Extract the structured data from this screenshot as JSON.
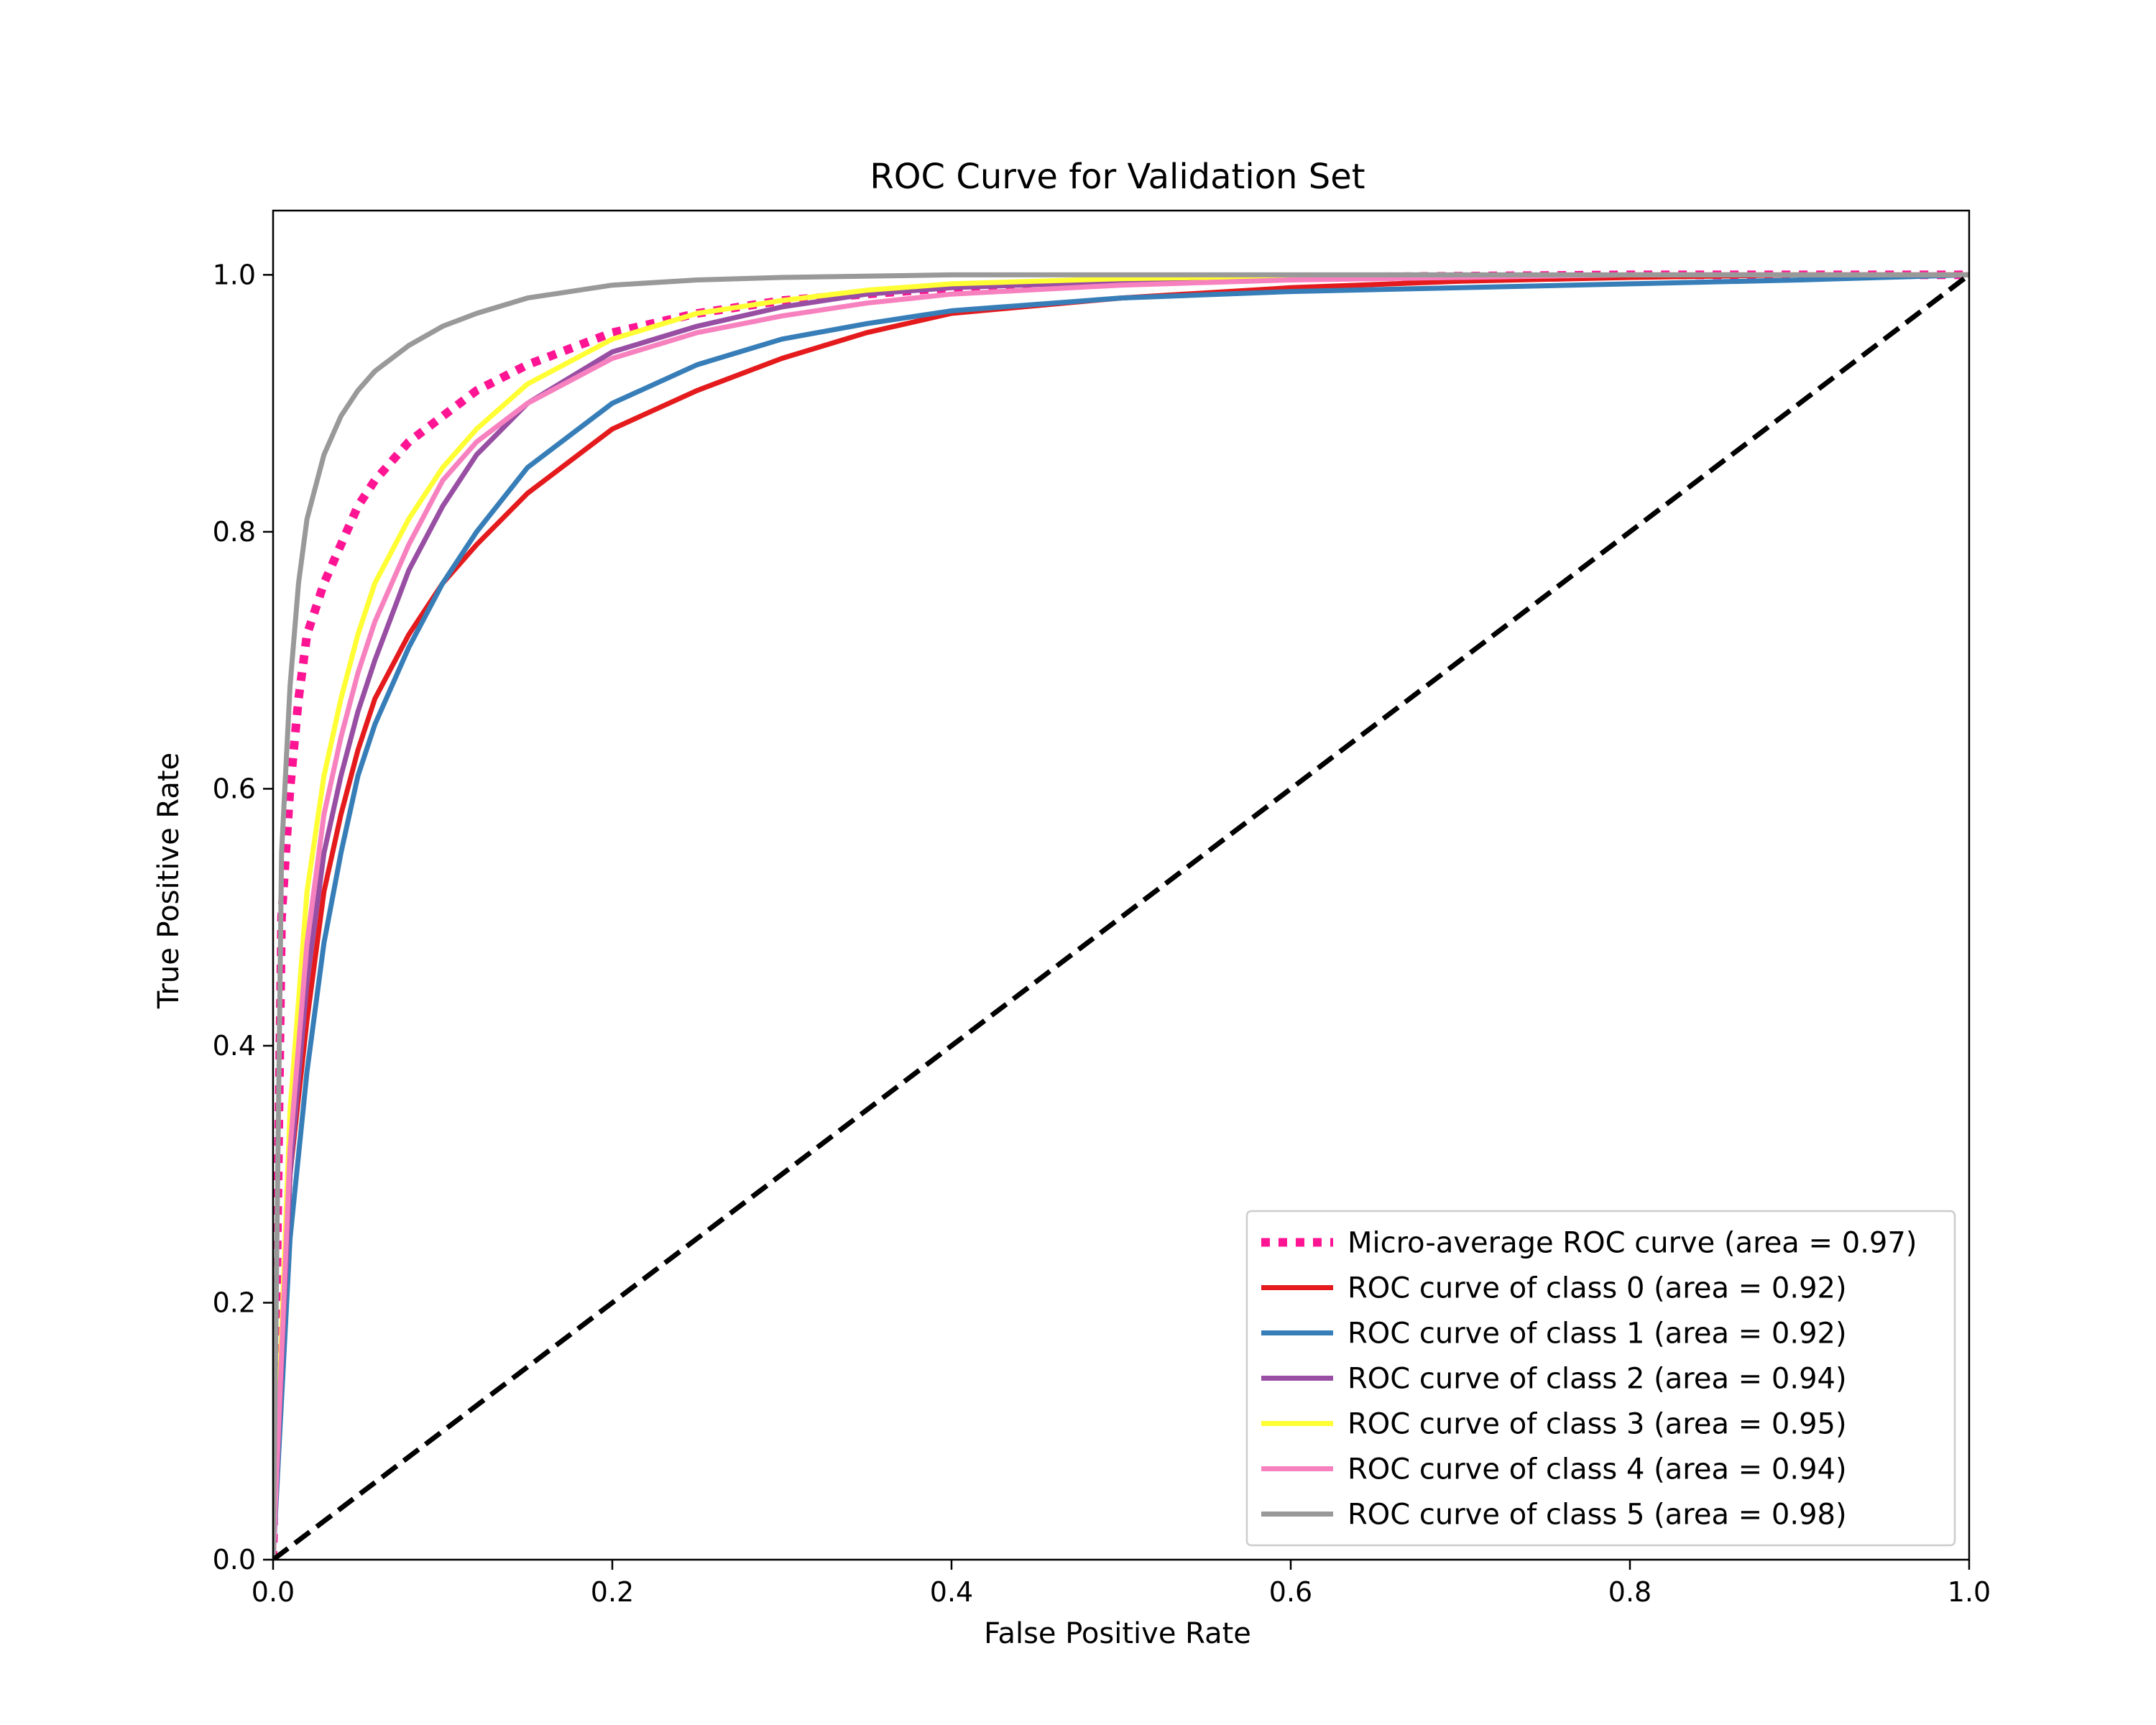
{
  "chart_data": {
    "type": "line",
    "title": "ROC Curve for Validation Set",
    "xlabel": "False Positive Rate",
    "ylabel": "True Positive Rate",
    "xlim": [
      0.0,
      1.0
    ],
    "ylim": [
      0.0,
      1.05
    ],
    "xticks": [
      0.0,
      0.2,
      0.4,
      0.6,
      0.8,
      1.0
    ],
    "xtick_labels": [
      "0.0",
      "0.2",
      "0.4",
      "0.6",
      "0.8",
      "1.0"
    ],
    "yticks": [
      0.0,
      0.2,
      0.4,
      0.6,
      0.8,
      1.0
    ],
    "ytick_labels": [
      "0.0",
      "0.2",
      "0.4",
      "0.6",
      "0.8",
      "1.0"
    ],
    "grid": false,
    "legend_position": "lower-right",
    "diagonal": {
      "name": "chance",
      "color": "#000000",
      "style": "dashed",
      "x": [
        0.0,
        1.0
      ],
      "y": [
        0.0,
        1.0
      ]
    },
    "series": [
      {
        "name": "Micro-average ROC curve (area = 0.97)",
        "color": "#ff1493",
        "style": "dotted",
        "x": [
          0.0,
          0.005,
          0.01,
          0.015,
          0.02,
          0.03,
          0.04,
          0.05,
          0.06,
          0.08,
          0.1,
          0.12,
          0.15,
          0.2,
          0.25,
          0.3,
          0.4,
          0.5,
          0.6,
          0.8,
          1.0
        ],
        "y": [
          0.0,
          0.5,
          0.6,
          0.67,
          0.72,
          0.76,
          0.79,
          0.82,
          0.84,
          0.87,
          0.89,
          0.91,
          0.93,
          0.955,
          0.97,
          0.98,
          0.99,
          0.995,
          0.998,
          1.0,
          1.0
        ]
      },
      {
        "name": "ROC curve of class 0 (area = 0.92)",
        "color": "#e41a1c",
        "style": "solid",
        "x": [
          0.0,
          0.01,
          0.02,
          0.03,
          0.04,
          0.05,
          0.06,
          0.08,
          0.1,
          0.12,
          0.15,
          0.2,
          0.25,
          0.3,
          0.35,
          0.4,
          0.5,
          0.6,
          0.7,
          0.8,
          0.9,
          1.0
        ],
        "y": [
          0.0,
          0.3,
          0.42,
          0.52,
          0.58,
          0.63,
          0.67,
          0.72,
          0.76,
          0.79,
          0.83,
          0.88,
          0.91,
          0.935,
          0.955,
          0.97,
          0.982,
          0.99,
          0.995,
          0.998,
          1.0,
          1.0
        ]
      },
      {
        "name": "ROC curve of class 1 (area = 0.92)",
        "color": "#377eb8",
        "style": "solid",
        "x": [
          0.0,
          0.01,
          0.02,
          0.03,
          0.04,
          0.05,
          0.06,
          0.08,
          0.1,
          0.12,
          0.15,
          0.2,
          0.25,
          0.3,
          0.35,
          0.4,
          0.5,
          0.6,
          0.7,
          0.8,
          0.9,
          1.0
        ],
        "y": [
          0.0,
          0.25,
          0.38,
          0.48,
          0.55,
          0.61,
          0.65,
          0.71,
          0.76,
          0.8,
          0.85,
          0.9,
          0.93,
          0.95,
          0.962,
          0.972,
          0.982,
          0.987,
          0.99,
          0.993,
          0.996,
          1.0
        ]
      },
      {
        "name": "ROC curve of class 2 (area = 0.94)",
        "color": "#984ea3",
        "style": "solid",
        "x": [
          0.0,
          0.01,
          0.02,
          0.03,
          0.04,
          0.05,
          0.06,
          0.08,
          0.1,
          0.12,
          0.15,
          0.2,
          0.25,
          0.3,
          0.35,
          0.4,
          0.5,
          0.6,
          0.8,
          1.0
        ],
        "y": [
          0.0,
          0.3,
          0.45,
          0.55,
          0.61,
          0.66,
          0.7,
          0.77,
          0.82,
          0.86,
          0.9,
          0.94,
          0.96,
          0.975,
          0.985,
          0.99,
          0.995,
          0.998,
          1.0,
          1.0
        ]
      },
      {
        "name": "ROC curve of class 3 (area = 0.95)",
        "color": "#ffff33",
        "style": "solid",
        "x": [
          0.0,
          0.01,
          0.02,
          0.03,
          0.04,
          0.05,
          0.06,
          0.08,
          0.1,
          0.12,
          0.15,
          0.2,
          0.25,
          0.3,
          0.35,
          0.4,
          0.5,
          0.6,
          0.8,
          1.0
        ],
        "y": [
          0.0,
          0.35,
          0.52,
          0.61,
          0.67,
          0.72,
          0.76,
          0.81,
          0.85,
          0.88,
          0.915,
          0.95,
          0.97,
          0.98,
          0.988,
          0.993,
          0.997,
          0.999,
          1.0,
          1.0
        ]
      },
      {
        "name": "ROC curve of class 4 (area = 0.94)",
        "color": "#f781bf",
        "style": "solid",
        "x": [
          0.0,
          0.01,
          0.02,
          0.03,
          0.04,
          0.05,
          0.06,
          0.08,
          0.1,
          0.12,
          0.15,
          0.2,
          0.25,
          0.3,
          0.35,
          0.4,
          0.5,
          0.6,
          0.8,
          1.0
        ],
        "y": [
          0.0,
          0.32,
          0.48,
          0.58,
          0.64,
          0.69,
          0.73,
          0.79,
          0.84,
          0.87,
          0.9,
          0.935,
          0.955,
          0.968,
          0.978,
          0.985,
          0.992,
          0.996,
          1.0,
          1.0
        ]
      },
      {
        "name": "ROC curve of class 5 (area = 0.98)",
        "color": "#999999",
        "style": "solid",
        "x": [
          0.0,
          0.005,
          0.01,
          0.015,
          0.02,
          0.03,
          0.04,
          0.05,
          0.06,
          0.08,
          0.1,
          0.12,
          0.15,
          0.2,
          0.25,
          0.3,
          0.4,
          0.6,
          1.0
        ],
        "y": [
          0.0,
          0.55,
          0.68,
          0.76,
          0.81,
          0.86,
          0.89,
          0.91,
          0.925,
          0.945,
          0.96,
          0.97,
          0.982,
          0.992,
          0.996,
          0.998,
          1.0,
          1.0,
          1.0
        ]
      }
    ]
  }
}
